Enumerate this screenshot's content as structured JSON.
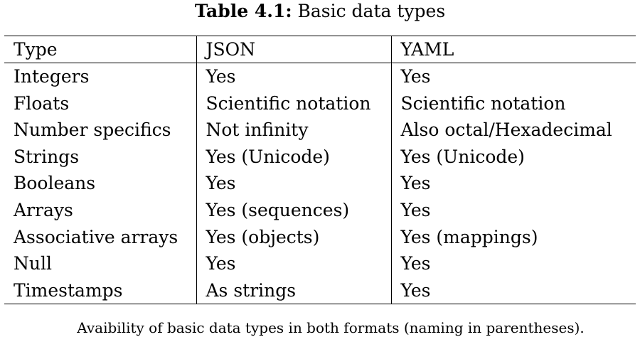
{
  "caption": {
    "label": "Table 4.1:",
    "title": "Basic data types"
  },
  "table": {
    "headers": [
      "Type",
      "JSON",
      "YAML"
    ],
    "rows": [
      [
        "Integers",
        "Yes",
        "Yes"
      ],
      [
        "Floats",
        "Scientific notation",
        "Scientific notation"
      ],
      [
        "Number specifics",
        "Not infinity",
        "Also octal/Hexadecimal"
      ],
      [
        "Strings",
        "Yes (Unicode)",
        "Yes (Unicode)"
      ],
      [
        "Booleans",
        "Yes",
        "Yes"
      ],
      [
        "Arrays",
        "Yes (sequences)",
        "Yes"
      ],
      [
        "Associative arrays",
        "Yes (objects)",
        "Yes (mappings)"
      ],
      [
        "Null",
        "Yes",
        "Yes"
      ],
      [
        "Timestamps",
        "As strings",
        "Yes"
      ]
    ]
  },
  "footnote": "Avaibility of basic data types in both formats (naming in parentheses)."
}
